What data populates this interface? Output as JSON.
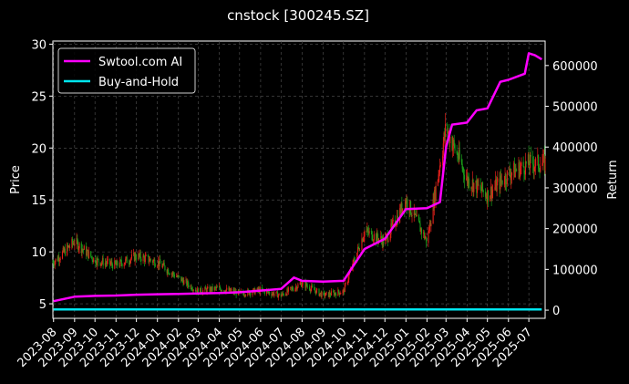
{
  "chart_data": {
    "type": "line",
    "title": "cnstock [300245.SZ]",
    "ylabel": "Price",
    "y2label": "Return",
    "ylim": [
      3.6,
      30.3
    ],
    "y2lim": [
      -20000,
      660000
    ],
    "yticks": [
      5,
      10,
      15,
      20,
      25,
      30
    ],
    "y2ticks": [
      0,
      100000,
      200000,
      300000,
      400000,
      500000,
      600000
    ],
    "xticks": [
      "2023-08",
      "2023-09",
      "2023-10",
      "2023-11",
      "2023-12",
      "2024-01",
      "2024-02",
      "2024-03",
      "2024-04",
      "2024-05",
      "2024-06",
      "2024-07",
      "2024-08",
      "2024-09",
      "2024-10",
      "2024-11",
      "2024-12",
      "2025-01",
      "2025-02",
      "2025-03",
      "2025-04",
      "2025-05",
      "2025-06",
      "2025-07"
    ],
    "grid": true,
    "legend_position": "top-left",
    "colors": {
      "background": "#000000",
      "ai_line": "#ff00ff",
      "hold_line": "#00e5ee",
      "candle_up": "#e0201a",
      "candle_down": "#1a9e1a",
      "grid": "#555555"
    },
    "series": [
      {
        "name": "Swtool.com AI",
        "axis": "right",
        "x": [
          "2023-08",
          "2023-09",
          "2023-10",
          "2023-11",
          "2023-12",
          "2024-01",
          "2024-02",
          "2024-03",
          "2024-04",
          "2024-05",
          "2024-06",
          "2024-07",
          "2024-07-20",
          "2024-08",
          "2024-09",
          "2024-10",
          "2024-10-20",
          "2024-11",
          "2024-12",
          "2025-01",
          "2025-02",
          "2025-02-20",
          "2025-03",
          "2025-03-10",
          "2025-04",
          "2025-04-15",
          "2025-05",
          "2025-05-20",
          "2025-06",
          "2025-06-25",
          "2025-07",
          "2025-07-10",
          "2025-07-20"
        ],
        "values": [
          22000,
          33000,
          35000,
          36000,
          38000,
          39000,
          40000,
          41000,
          42000,
          44000,
          48000,
          52000,
          80000,
          72000,
          70000,
          72000,
          120000,
          150000,
          175000,
          248000,
          250000,
          265000,
          400000,
          455000,
          460000,
          490000,
          495000,
          560000,
          565000,
          580000,
          630000,
          625000,
          615000
        ]
      },
      {
        "name": "Buy-and-Hold",
        "axis": "right",
        "x": [
          "2023-08",
          "2025-07-20"
        ],
        "values": [
          2000,
          2000
        ]
      },
      {
        "name": "Price",
        "axis": "left",
        "x": [
          "2023-08",
          "2023-09",
          "2023-10",
          "2023-11",
          "2023-12",
          "2024-01",
          "2024-02",
          "2024-03",
          "2024-04",
          "2024-05",
          "2024-06",
          "2024-07",
          "2024-08",
          "2024-09",
          "2024-10",
          "2024-11",
          "2024-12",
          "2025-01",
          "2025-02",
          "2025-03",
          "2025-04",
          "2025-05",
          "2025-06",
          "2025-07"
        ],
        "values": [
          9.0,
          11.0,
          9.2,
          8.7,
          9.6,
          9.0,
          7.5,
          6.2,
          6.5,
          6.0,
          6.3,
          5.8,
          7.0,
          5.8,
          6.2,
          12.0,
          11.0,
          15.0,
          11.0,
          22.0,
          17.0,
          15.5,
          17.5,
          18.5
        ]
      }
    ]
  }
}
